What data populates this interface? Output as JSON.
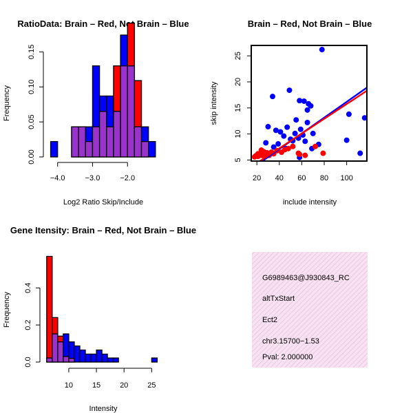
{
  "colors": {
    "red": "#ff0000",
    "blue": "#0000ff",
    "purple": "#9933cc",
    "info_bg": "#f5dcee",
    "pval": "#b00000"
  },
  "chart_data": [
    {
      "id": "ratio_hist",
      "type": "bar",
      "title": "RatioData: Brain – Red, Not Brain – Blue",
      "xlabel": "Log2 Ratio Skip/Include",
      "ylabel": "Frequency",
      "xlim": [
        -4.25,
        -1.0
      ],
      "ylim": [
        0,
        0.17
      ],
      "xticks": [
        -4.0,
        -3.0,
        -2.0
      ],
      "xtick_labels": [
        "−4.0",
        "−3.0",
        "−2.0"
      ],
      "yticks": [
        0.0,
        0.05,
        0.1,
        0.15
      ],
      "ytick_labels": [
        "0.00",
        "0.05",
        "0.10",
        "0.15"
      ],
      "bin_width": 0.2,
      "bin_starts": [
        -4.2,
        -4.0,
        -3.8,
        -3.6,
        -3.4,
        -3.2,
        -3.0,
        -2.8,
        -2.6,
        -2.4,
        -2.2,
        -2.0,
        -1.8,
        -1.6,
        -1.4
      ],
      "series": [
        {
          "name": "Not Brain",
          "color": "blue",
          "values": [
            0.022,
            0.0,
            0.0,
            0.043,
            0.043,
            0.043,
            0.13,
            0.087,
            0.087,
            0.065,
            0.174,
            0.13,
            0.043,
            0.043,
            0.022
          ]
        },
        {
          "name": "Brain",
          "color": "red",
          "values": [
            0.0,
            0.0,
            0.0,
            0.043,
            0.043,
            0.022,
            0.043,
            0.065,
            0.043,
            0.13,
            0.13,
            0.191,
            0.109,
            0.022,
            0.0
          ]
        }
      ]
    },
    {
      "id": "scatter",
      "type": "scatter",
      "title": "Brain – Red, Not Brain – Blue",
      "xlabel": "include intensity",
      "ylabel": "skip intensity",
      "xlim": [
        15,
        118
      ],
      "ylim": [
        4.8,
        27
      ],
      "xticks": [
        20,
        40,
        60,
        80,
        100
      ],
      "xtick_labels": [
        "20",
        "40",
        "60",
        "80",
        "100"
      ],
      "yticks": [
        5,
        10,
        15,
        20,
        25
      ],
      "ytick_labels": [
        "5",
        "10",
        "15",
        "20",
        "25"
      ],
      "series": [
        {
          "name": "Not Brain",
          "color": "blue",
          "points": [
            [
              78,
              26.2
            ],
            [
              49,
              18.4
            ],
            [
              34,
              17.2
            ],
            [
              58,
              16.4
            ],
            [
              62,
              16.3
            ],
            [
              66,
              15.8
            ],
            [
              68,
              15.4
            ],
            [
              65,
              14.6
            ],
            [
              55,
              12.7
            ],
            [
              30,
              11.4
            ],
            [
              47,
              11.3
            ],
            [
              37,
              10.7
            ],
            [
              41,
              10.4
            ],
            [
              54,
              10.1
            ],
            [
              61,
              9.8
            ],
            [
              70,
              10.1
            ],
            [
              44,
              9.6
            ],
            [
              57,
              9.2
            ],
            [
              50,
              9.0
            ],
            [
              28,
              8.3
            ],
            [
              39,
              8.1
            ],
            [
              35,
              7.5
            ],
            [
              69,
              7.2
            ],
            [
              75,
              8.0
            ],
            [
              52,
              8.7
            ],
            [
              63,
              8.6
            ],
            [
              46,
              7.2
            ],
            [
              58,
              5.5
            ],
            [
              100,
              8.8
            ],
            [
              102,
              13.8
            ],
            [
              112,
              6.3
            ],
            [
              116,
              13.1
            ],
            [
              65,
              12.2
            ],
            [
              59,
              10.9
            ]
          ]
        },
        {
          "name": "Brain",
          "color": "red",
          "points": [
            [
              18,
              5.6
            ],
            [
              19,
              5.8
            ],
            [
              20,
              5.9
            ],
            [
              21,
              5.7
            ],
            [
              22,
              6.1
            ],
            [
              23,
              6.0
            ],
            [
              24,
              5.9
            ],
            [
              25,
              6.3
            ],
            [
              26,
              6.6
            ],
            [
              27,
              5.8
            ],
            [
              28,
              6.2
            ],
            [
              29,
              6.4
            ],
            [
              30,
              6.0
            ],
            [
              31,
              5.9
            ],
            [
              33,
              6.5
            ],
            [
              35,
              6.2
            ],
            [
              38,
              6.8
            ],
            [
              42,
              6.5
            ],
            [
              45,
              7.0
            ],
            [
              48,
              7.2
            ],
            [
              52,
              7.6
            ],
            [
              58,
              6.1
            ],
            [
              63,
              5.9
            ],
            [
              72,
              7.6
            ],
            [
              79,
              6.3
            ],
            [
              57,
              6.3
            ],
            [
              24,
              6.9
            ],
            [
              21,
              6.2
            ],
            [
              26,
              5.8
            ]
          ]
        }
      ],
      "fit_lines": [
        {
          "name": "Not Brain fit",
          "color": "blue",
          "x": [
            15,
            118
          ],
          "y": [
            3.3,
            18.9
          ]
        },
        {
          "name": "Brain fit",
          "color": "red",
          "x": [
            15,
            118
          ],
          "y": [
            3.7,
            18.3
          ]
        }
      ]
    },
    {
      "id": "intensity_hist",
      "type": "bar",
      "title": "Gene Itensity: Brain – Red, Not Brain – Blue",
      "xlabel": "Intensity",
      "ylabel": "Frequency",
      "xlim": [
        5.4,
        27.2
      ],
      "ylim": [
        0,
        0.62
      ],
      "xticks": [
        10,
        15,
        20,
        25
      ],
      "xtick_labels": [
        "10",
        "15",
        "20",
        "25"
      ],
      "yticks": [
        0.0,
        0.2,
        0.4
      ],
      "ytick_labels": [
        "0.0",
        "0.2",
        "0.4"
      ],
      "bin_width": 1.0,
      "bin_starts": [
        6,
        7,
        8,
        9,
        10,
        11,
        12,
        13,
        14,
        15,
        16,
        17,
        18,
        19,
        20,
        21,
        22,
        23,
        24,
        25
      ],
      "series": [
        {
          "name": "Not Brain",
          "color": "blue",
          "values": [
            0.022,
            0.152,
            0.109,
            0.152,
            0.109,
            0.087,
            0.065,
            0.043,
            0.043,
            0.065,
            0.043,
            0.022,
            0.022,
            0.0,
            0.0,
            0.0,
            0.0,
            0.0,
            0.0,
            0.022
          ]
        },
        {
          "name": "Brain",
          "color": "red",
          "values": [
            0.57,
            0.24,
            0.14,
            0.03,
            0.02,
            0.0,
            0.0,
            0.0,
            0.0,
            0.0,
            0.0,
            0.0,
            0.0,
            0.0,
            0.0,
            0.0,
            0.0,
            0.0,
            0.0,
            0.0
          ]
        }
      ]
    }
  ],
  "info_box": {
    "gene_id": "G6989463@J930843_RC",
    "event_type": "altTxStart",
    "gene_name": "Ect2",
    "location": "chr3.15700−1.53",
    "pval": "Pval: 2.000000"
  }
}
